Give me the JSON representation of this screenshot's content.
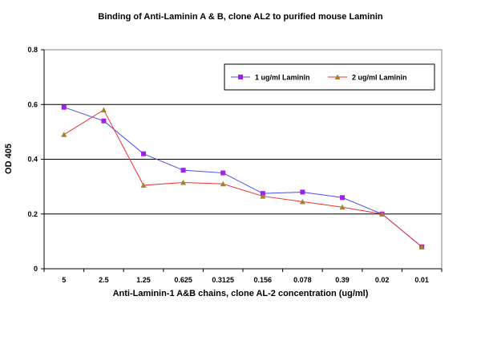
{
  "chart_data": {
    "type": "line",
    "title": "Binding of Anti-Laminin A & B, clone AL2 to purified mouse Laminin",
    "xlabel": "Anti-Laminin-1 A&B chains, clone AL-2 concentration (ug/ml)",
    "ylabel": "OD 405",
    "categories": [
      "5",
      "2.5",
      "1.25",
      "0.625",
      "0.3125",
      "0.156",
      "0.078",
      "0.39",
      "0.02",
      "0.01"
    ],
    "yticks": [
      "0",
      "0.2",
      "0.4",
      "0.6",
      "0.8"
    ],
    "ylim": [
      0,
      0.8
    ],
    "grid": "horizontal",
    "legend_position": "top-right",
    "series": [
      {
        "name": "1 ug/ml Laminin",
        "color": "#4b4bf0",
        "marker": "square",
        "marker_color": "#a020f0",
        "values": [
          0.59,
          0.54,
          0.42,
          0.36,
          0.35,
          0.275,
          0.28,
          0.26,
          0.2,
          0.08
        ]
      },
      {
        "name": "2 ug/ml Laminin",
        "color": "#f03030",
        "marker": "triangle",
        "marker_color": "#a0822d",
        "values": [
          0.49,
          0.58,
          0.305,
          0.315,
          0.31,
          0.265,
          0.245,
          0.225,
          0.2,
          0.08
        ]
      }
    ]
  }
}
